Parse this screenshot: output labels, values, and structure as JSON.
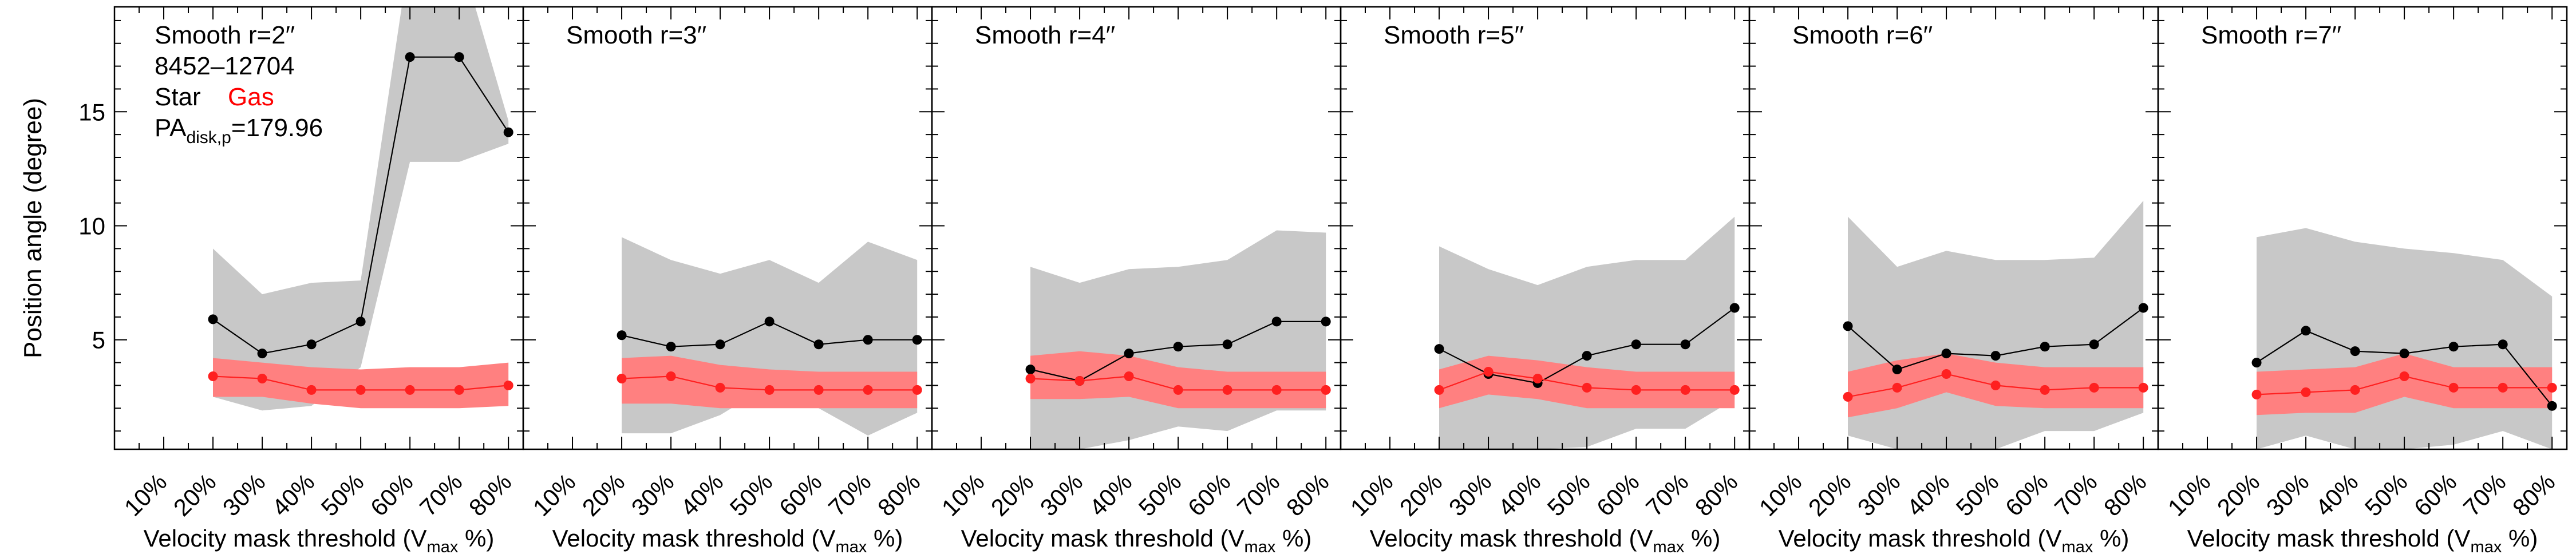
{
  "colors": {
    "star_line": "#000000",
    "star_band": "#c8c8c8",
    "gas_line": "#ff2020",
    "gas_band": "#ff8080",
    "gas_label": "#ff0000"
  },
  "ylabel": "Position angle (degree)",
  "xlabel": "Velocity mask threshold (V",
  "xlabel_sub": "max",
  "xlabel_tail": " %)",
  "legend": {
    "galaxy_id": "8452–12704",
    "star_label": "Star",
    "gas_label": "Gas",
    "pa_prefix": "PA",
    "pa_sub": "disk,p",
    "pa_value": "=179.96"
  },
  "chart_data": {
    "type": "line",
    "x_tick_labels": [
      "10%",
      "20%",
      "30%",
      "40%",
      "50%",
      "60%",
      "70%",
      "80%"
    ],
    "x": [
      20,
      30,
      40,
      50,
      60,
      70,
      80
    ],
    "xlim": [
      0,
      83
    ],
    "ylim": [
      0.2,
      19.6
    ],
    "yticks": [
      5,
      10,
      15
    ],
    "panels": [
      {
        "title": "Smooth r=2′′",
        "series": [
          {
            "name": "Star",
            "values": [
              5.9,
              4.4,
              4.8,
              5.8,
              17.4,
              17.4,
              14.1
            ],
            "upper": [
              9.0,
              7.0,
              7.5,
              7.6,
              22.0,
              22.0,
              14.6
            ],
            "lower": [
              2.5,
              1.9,
              2.1,
              3.8,
              12.8,
              12.8,
              13.6
            ]
          },
          {
            "name": "Gas",
            "values": [
              3.4,
              3.3,
              2.8,
              2.8,
              2.8,
              2.8,
              3.0
            ],
            "upper": [
              4.2,
              4.0,
              3.8,
              3.7,
              3.8,
              3.8,
              4.0
            ],
            "lower": [
              2.5,
              2.5,
              2.2,
              2.0,
              2.0,
              2.0,
              2.1
            ]
          }
        ]
      },
      {
        "title": "Smooth r=3′′",
        "series": [
          {
            "name": "Star",
            "values": [
              5.2,
              4.7,
              4.8,
              5.8,
              4.8,
              5.0,
              5.0
            ],
            "upper": [
              9.5,
              8.5,
              7.9,
              8.5,
              7.5,
              9.3,
              8.5
            ],
            "lower": [
              0.9,
              0.9,
              1.7,
              3.0,
              2.0,
              0.8,
              1.8
            ]
          },
          {
            "name": "Gas",
            "values": [
              3.3,
              3.4,
              2.9,
              2.8,
              2.8,
              2.8,
              2.8
            ],
            "upper": [
              4.2,
              4.3,
              3.9,
              3.7,
              3.6,
              3.6,
              3.6
            ],
            "lower": [
              2.2,
              2.2,
              2.0,
              2.0,
              2.0,
              2.0,
              2.0
            ]
          }
        ]
      },
      {
        "title": "Smooth r=4′′",
        "series": [
          {
            "name": "Star",
            "values": [
              3.7,
              3.2,
              4.4,
              4.7,
              4.8,
              5.8,
              5.8
            ],
            "upper": [
              8.2,
              7.5,
              8.1,
              8.2,
              8.5,
              9.8,
              9.7
            ],
            "lower": [
              0.2,
              0.2,
              0.6,
              1.2,
              1.0,
              1.9,
              1.9
            ]
          },
          {
            "name": "Gas",
            "values": [
              3.3,
              3.2,
              3.4,
              2.8,
              2.8,
              2.8,
              2.8
            ],
            "upper": [
              4.3,
              4.5,
              4.3,
              3.8,
              3.6,
              3.6,
              3.6
            ],
            "lower": [
              2.4,
              2.4,
              2.5,
              2.0,
              2.0,
              2.0,
              2.0
            ]
          }
        ]
      },
      {
        "title": "Smooth r=5′′",
        "series": [
          {
            "name": "Star",
            "values": [
              4.6,
              3.5,
              3.1,
              4.3,
              4.8,
              4.8,
              6.4
            ],
            "upper": [
              9.1,
              8.1,
              7.4,
              8.2,
              8.5,
              8.5,
              10.4
            ],
            "lower": [
              0.2,
              0.2,
              0.2,
              0.3,
              1.1,
              1.1,
              2.4
            ]
          },
          {
            "name": "Gas",
            "values": [
              2.8,
              3.6,
              3.3,
              2.9,
              2.8,
              2.8,
              2.8
            ],
            "upper": [
              3.7,
              4.3,
              4.1,
              3.8,
              3.6,
              3.6,
              3.6
            ],
            "lower": [
              2.0,
              2.6,
              2.4,
              2.0,
              2.0,
              2.0,
              2.0
            ]
          }
        ]
      },
      {
        "title": "Smooth r=6′′",
        "series": [
          {
            "name": "Star",
            "values": [
              5.6,
              3.7,
              4.4,
              4.3,
              4.7,
              4.8,
              6.4
            ],
            "upper": [
              10.4,
              8.2,
              8.9,
              8.5,
              8.5,
              8.6,
              11.1
            ],
            "lower": [
              0.8,
              0.2,
              0.2,
              0.2,
              1.0,
              1.0,
              1.8
            ]
          },
          {
            "name": "Gas",
            "values": [
              2.5,
              2.9,
              3.5,
              3.0,
              2.8,
              2.9,
              2.9
            ],
            "upper": [
              3.6,
              4.1,
              4.4,
              4.0,
              3.8,
              3.8,
              3.8
            ],
            "lower": [
              1.6,
              2.0,
              2.7,
              2.1,
              2.0,
              2.0,
              2.0
            ]
          }
        ]
      },
      {
        "title": "Smooth r=7′′",
        "series": [
          {
            "name": "Star",
            "values": [
              4.0,
              5.4,
              4.5,
              4.4,
              4.7,
              4.8,
              2.1
            ],
            "upper": [
              9.5,
              9.9,
              9.3,
              9.0,
              8.8,
              8.5,
              6.9
            ],
            "lower": [
              0.2,
              0.8,
              0.2,
              0.2,
              0.4,
              1.0,
              0.2
            ]
          },
          {
            "name": "Gas",
            "values": [
              2.6,
              2.7,
              2.8,
              3.4,
              2.9,
              2.9,
              2.9
            ],
            "upper": [
              3.6,
              3.7,
              3.8,
              4.4,
              3.8,
              3.8,
              3.8
            ],
            "lower": [
              1.7,
              1.8,
              1.8,
              2.5,
              2.0,
              2.0,
              2.0
            ]
          }
        ]
      }
    ]
  }
}
